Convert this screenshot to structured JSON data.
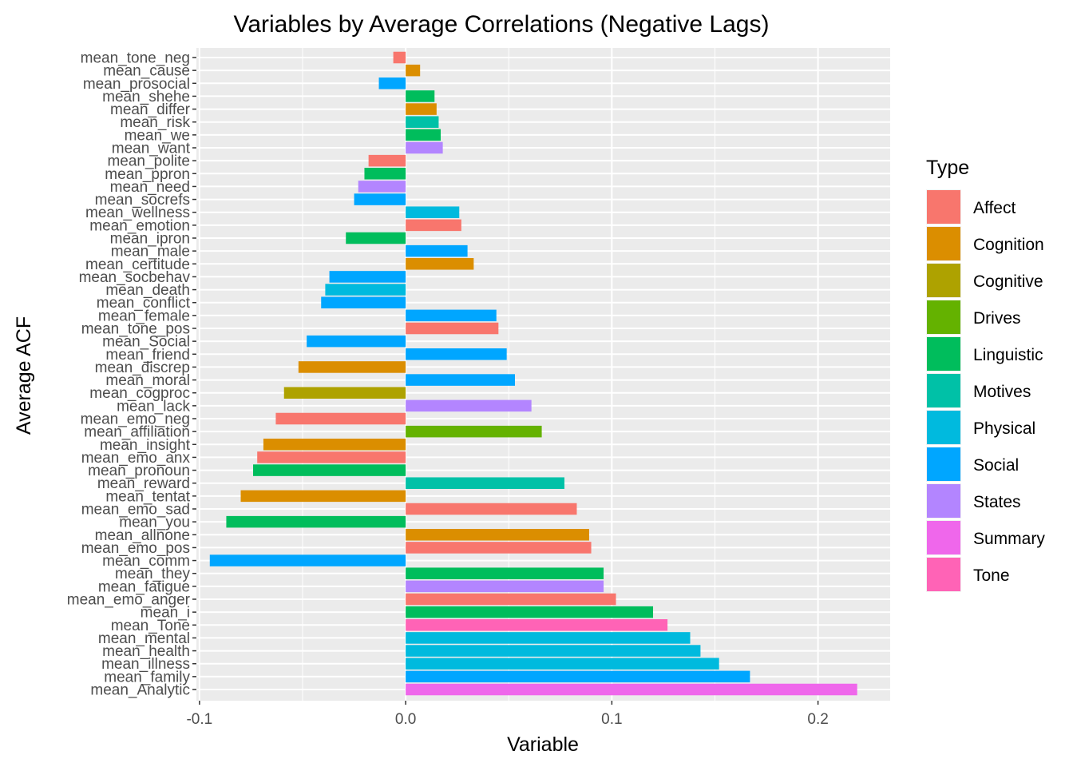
{
  "chart_data": {
    "type": "bar",
    "orientation": "horizontal",
    "title": "Variables by Average Correlations (Negative Lags)",
    "xlabel": "Variable",
    "ylabel": "Average ACF",
    "xlim": [
      -0.1015,
      0.235
    ],
    "xticks": [
      -0.1,
      0.0,
      0.1,
      0.2
    ],
    "xtick_labels": [
      "-0.1",
      "0.0",
      "0.1",
      "0.2"
    ],
    "grid": true,
    "legend_position": "right",
    "legend_title": "Type",
    "types": [
      {
        "name": "Affect",
        "color": "#F8766D"
      },
      {
        "name": "Cognition",
        "color": "#DB8E00"
      },
      {
        "name": "Cognitive",
        "color": "#AEA200"
      },
      {
        "name": "Drives",
        "color": "#64B200"
      },
      {
        "name": "Linguistic",
        "color": "#00BD5C"
      },
      {
        "name": "Motives",
        "color": "#00C1A7"
      },
      {
        "name": "Physical",
        "color": "#00BADE"
      },
      {
        "name": "Social",
        "color": "#00A6FF"
      },
      {
        "name": "States",
        "color": "#B385FF"
      },
      {
        "name": "Summary",
        "color": "#EF67EB"
      },
      {
        "name": "Tone",
        "color": "#FF63B6"
      }
    ],
    "bars": [
      {
        "label": "mean_tone_neg",
        "value": -0.006,
        "type": "Affect"
      },
      {
        "label": "mean_cause",
        "value": 0.007,
        "type": "Cognition"
      },
      {
        "label": "mean_prosocial",
        "value": -0.013,
        "type": "Social"
      },
      {
        "label": "mean_shehe",
        "value": 0.014,
        "type": "Linguistic"
      },
      {
        "label": "mean_differ",
        "value": 0.015,
        "type": "Cognition"
      },
      {
        "label": "mean_risk",
        "value": 0.016,
        "type": "Motives"
      },
      {
        "label": "mean_we",
        "value": 0.017,
        "type": "Linguistic"
      },
      {
        "label": "mean_want",
        "value": 0.018,
        "type": "States"
      },
      {
        "label": "mean_polite",
        "value": -0.018,
        "type": "Affect"
      },
      {
        "label": "mean_ppron",
        "value": -0.02,
        "type": "Linguistic"
      },
      {
        "label": "mean_need",
        "value": -0.023,
        "type": "States"
      },
      {
        "label": "mean_socrefs",
        "value": -0.025,
        "type": "Social"
      },
      {
        "label": "mean_wellness",
        "value": 0.026,
        "type": "Physical"
      },
      {
        "label": "mean_emotion",
        "value": 0.027,
        "type": "Affect"
      },
      {
        "label": "mean_ipron",
        "value": -0.029,
        "type": "Linguistic"
      },
      {
        "label": "mean_male",
        "value": 0.03,
        "type": "Social"
      },
      {
        "label": "mean_certitude",
        "value": 0.033,
        "type": "Cognition"
      },
      {
        "label": "mean_socbehav",
        "value": -0.037,
        "type": "Social"
      },
      {
        "label": "mean_death",
        "value": -0.039,
        "type": "Physical"
      },
      {
        "label": "mean_conflict",
        "value": -0.041,
        "type": "Social"
      },
      {
        "label": "mean_female",
        "value": 0.044,
        "type": "Social"
      },
      {
        "label": "mean_tone_pos",
        "value": 0.045,
        "type": "Affect"
      },
      {
        "label": "mean_Social",
        "value": -0.048,
        "type": "Social"
      },
      {
        "label": "mean_friend",
        "value": 0.049,
        "type": "Social"
      },
      {
        "label": "mean_discrep",
        "value": -0.052,
        "type": "Cognition"
      },
      {
        "label": "mean_moral",
        "value": 0.053,
        "type": "Social"
      },
      {
        "label": "mean_cogproc",
        "value": -0.059,
        "type": "Cognitive"
      },
      {
        "label": "mean_lack",
        "value": 0.061,
        "type": "States"
      },
      {
        "label": "mean_emo_neg",
        "value": -0.063,
        "type": "Affect"
      },
      {
        "label": "mean_affiliation",
        "value": 0.066,
        "type": "Drives"
      },
      {
        "label": "mean_insight",
        "value": -0.069,
        "type": "Cognition"
      },
      {
        "label": "mean_emo_anx",
        "value": -0.072,
        "type": "Affect"
      },
      {
        "label": "mean_pronoun",
        "value": -0.074,
        "type": "Linguistic"
      },
      {
        "label": "mean_reward",
        "value": 0.077,
        "type": "Motives"
      },
      {
        "label": "mean_tentat",
        "value": -0.08,
        "type": "Cognition"
      },
      {
        "label": "mean_emo_sad",
        "value": 0.083,
        "type": "Affect"
      },
      {
        "label": "mean_you",
        "value": -0.087,
        "type": "Linguistic"
      },
      {
        "label": "mean_allnone",
        "value": 0.089,
        "type": "Cognition"
      },
      {
        "label": "mean_emo_pos",
        "value": 0.09,
        "type": "Affect"
      },
      {
        "label": "mean_comm",
        "value": -0.095,
        "type": "Social"
      },
      {
        "label": "mean_they",
        "value": 0.096,
        "type": "Linguistic"
      },
      {
        "label": "mean_fatigue",
        "value": 0.096,
        "type": "States"
      },
      {
        "label": "mean_emo_anger",
        "value": 0.102,
        "type": "Affect"
      },
      {
        "label": "mean_i",
        "value": 0.12,
        "type": "Linguistic"
      },
      {
        "label": "mean_Tone",
        "value": 0.127,
        "type": "Tone"
      },
      {
        "label": "mean_mental",
        "value": 0.138,
        "type": "Physical"
      },
      {
        "label": "mean_health",
        "value": 0.143,
        "type": "Physical"
      },
      {
        "label": "mean_illness",
        "value": 0.152,
        "type": "Physical"
      },
      {
        "label": "mean_family",
        "value": 0.167,
        "type": "Social"
      },
      {
        "label": "mean_Analytic",
        "value": 0.219,
        "type": "Summary"
      }
    ]
  }
}
